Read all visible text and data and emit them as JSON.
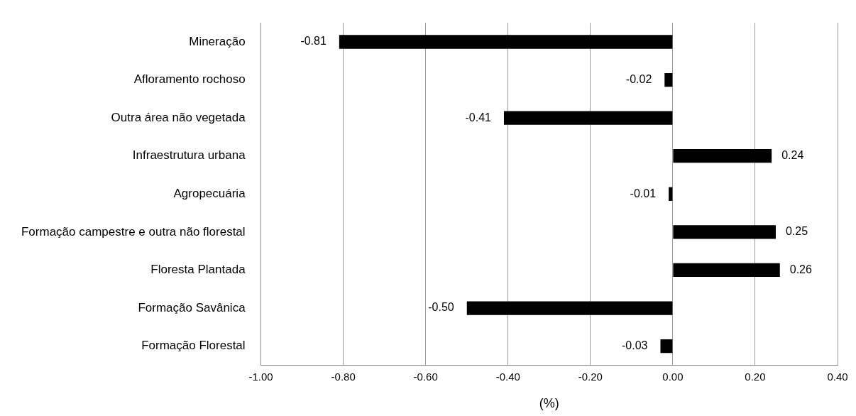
{
  "chart_data": {
    "type": "bar",
    "orientation": "horizontal",
    "xlabel": "(%)",
    "categories": [
      "Mineração",
      "Afloramento rochoso",
      "Outra área não vegetada",
      "Infraestrutura urbana",
      "Agropecuária",
      "Formação campestre e outra não florestal",
      "Floresta Plantada",
      "Formação Savânica",
      "Formação Florestal"
    ],
    "values": [
      -0.81,
      -0.02,
      -0.41,
      0.24,
      -0.01,
      0.25,
      0.26,
      -0.5,
      -0.03
    ],
    "value_labels": [
      "-0.81",
      "-0.02",
      "-0.41",
      "0.24",
      "-0.01",
      "0.25",
      "0.26",
      "-0.50",
      "-0.03"
    ],
    "color": "#000000",
    "xlim": [
      -1,
      0.4
    ],
    "xticks": [
      {
        "value": -1,
        "label": "-1.00"
      },
      {
        "value": -0.8,
        "label": "-0.80"
      },
      {
        "value": -0.6,
        "label": "-0.60"
      },
      {
        "value": -0.4,
        "label": "-0.40"
      },
      {
        "value": -0.2,
        "label": "-0.20"
      },
      {
        "value": 0,
        "label": "0.00"
      },
      {
        "value": 0.2,
        "label": "0.20"
      },
      {
        "value": 0.4,
        "label": "0.40"
      }
    ],
    "grid": "x",
    "legend": false
  }
}
